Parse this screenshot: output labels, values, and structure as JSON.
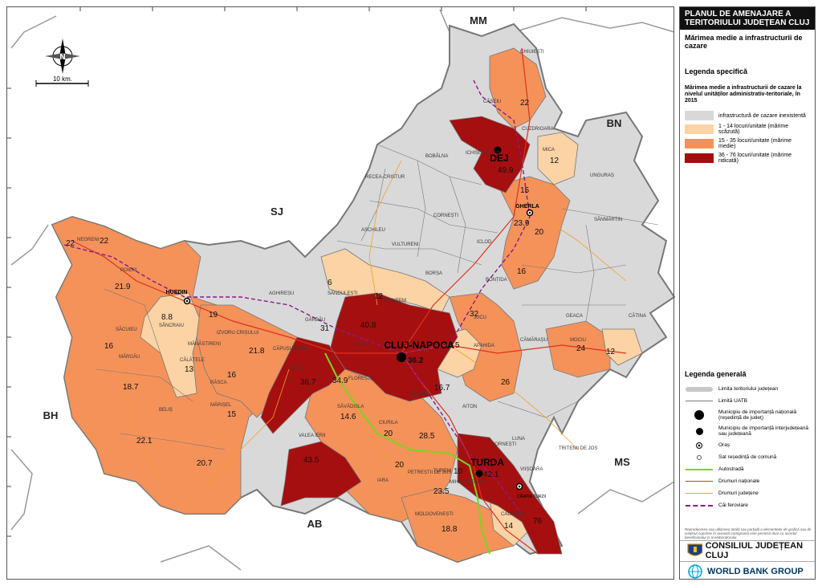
{
  "panel": {
    "title": "PLANUL DE AMENAJARE A TERITORIULUI JUDEȚEAN CLUJ",
    "subtitle": "Mărimea medie a infrastructurii de cazare",
    "legend_specific_title": "Legenda specifică",
    "legend_specific_desc": "Mărimea medie a infrastructurii de cazare la nivelul unităților administrativ-teritoriale, în 2015",
    "classes": [
      {
        "label": "infrastructură de cazare inexistentă",
        "color": "#d9d9d9"
      },
      {
        "label": "1 - 14 locuri/unitate (mărime scăzută)",
        "color": "#fbd3a4"
      },
      {
        "label": "15 - 35 locuri/unitate (mărime medie)",
        "color": "#f4925a"
      },
      {
        "label": "36 - 76 locuri/unitate (mărime ridicată)",
        "color": "#a50f0f"
      }
    ],
    "legend_general_title": "Legenda generală",
    "general": [
      {
        "label": "Limita teritoriului județean",
        "icon": "county-border-symbol"
      },
      {
        "label": "Limită UATB",
        "icon": "uatb-border-symbol"
      },
      {
        "label": "Municipiu de importanță națională (reședință de județ)",
        "icon": "large-dot-symbol"
      },
      {
        "label": "Municipiu de importanță interjudețeană sau județeană",
        "icon": "medium-dot-symbol"
      },
      {
        "label": "Oraș",
        "icon": "town-symbol"
      },
      {
        "label": "Sat reședință de comună",
        "icon": "commune-symbol"
      },
      {
        "label": "Autostradă",
        "icon": "motorway-line",
        "color": "#7ed321"
      },
      {
        "label": "Drumuri naționale",
        "icon": "national-road-line",
        "color": "#e0301e"
      },
      {
        "label": "Drumuri județene",
        "icon": "county-road-line",
        "color": "#f0a030"
      },
      {
        "label": "Căi feroviare",
        "icon": "railway-line",
        "color": "#8a1a8a"
      }
    ],
    "disclaimer": "Reproducerea sau utilizarea totală sau parțială a elementelor de grafică sau de conținut cuprinse în această cartogramă este permisă doar cu acordul beneficiarului și al elaboratorului.",
    "logo_cj": "CONSILIUL JUDEȚEAN CLUJ",
    "logo_wb": "WORLD BANK GROUP"
  },
  "map": {
    "scale_label": "10 km.",
    "north_label": "N",
    "counties": [
      "MM",
      "BN",
      "SJ",
      "BH",
      "MS",
      "AB"
    ],
    "cities": [
      "CLUJ-NAPOCA",
      "DEJ",
      "TURDA",
      "HUEDIN",
      "GHERLA",
      "CÂMPIA TURZII"
    ],
    "values": [
      "22",
      "22",
      "21.9",
      "8.8",
      "19",
      "16",
      "13",
      "18.7",
      "22.1",
      "20.7",
      "16",
      "15",
      "21.8",
      "31",
      "6",
      "12",
      "40.8",
      "36.2",
      "13.5",
      "32",
      "16.7",
      "36.7",
      "34.9",
      "14.6",
      "20",
      "28.5",
      "26",
      "24",
      "12",
      "43.5",
      "20",
      "10",
      "23.5",
      "42.1",
      "18.8",
      "14",
      "76",
      "22",
      "12",
      "49.9",
      "15",
      "23.9",
      "20",
      "16"
    ],
    "places": [
      "CHIUIEȘTI",
      "CĂȘEIU",
      "CUZDRIOARA",
      "MICA",
      "UNGURAȘ",
      "ICHIȘU DE JOS",
      "BOBÂLNA",
      "RECEA-CRISTUR",
      "CORNEȘTI",
      "SÂNMĂRTIN",
      "ASCHILEU",
      "VULTURENI",
      "ICLOD",
      "BONȚIDA",
      "BORȘA",
      "SĂNDULEȘTI",
      "CHINTENI",
      "JUCU",
      "APAHIDA",
      "GEACA",
      "CĂTINA",
      "CĂMĂRAȘU",
      "MOCIU",
      "SĂVĂDISLA",
      "FELEACU",
      "CIURILA",
      "PETREȘTII DE JOS",
      "TURENI",
      "MIHAI VITEAZU",
      "MOLDOVENEȘTI",
      "IARA",
      "VALEA IERII",
      "MĂRIȘEL",
      "BELIȘ",
      "MĂRGĂU",
      "SĂCUIEU",
      "POIENI",
      "NEGRENI",
      "SÂNCRAIU",
      "CĂLĂȚELE",
      "MĂNĂSTIRENI",
      "RĂSCA",
      "GILĂU",
      "FLOREȘTI",
      "BACIU",
      "GÂRBĂU",
      "AGHIREȘU",
      "CĂPUȘU MARE",
      "IZVORU CRIȘULUI",
      "LUNA",
      "CALARAȘI",
      "VIIȘOARA",
      "TRITENII DE JOS",
      "AITON",
      "CORNEȘTI"
    ]
  }
}
